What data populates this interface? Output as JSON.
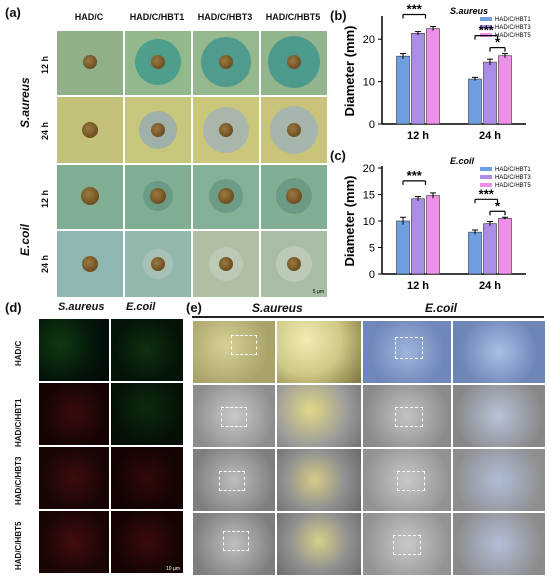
{
  "panel_a": {
    "label": "(a)",
    "columns": [
      "HAD/C",
      "HAD/C/HBT1",
      "HAD/C/HBT3",
      "HAD/C/HBT5"
    ],
    "groups": [
      "S.aureus",
      "E.coil"
    ],
    "times": [
      "12 h",
      "24 h"
    ],
    "scale_bar": "5 µm"
  },
  "panel_d": {
    "label": "(d)",
    "columns": [
      "S.aureus",
      "E.coil"
    ],
    "rows": [
      "HAD/C",
      "HAD/C/HBT1",
      "HAD/C/HBT3",
      "HAD/C/HBT5"
    ],
    "scale_bar": "10 µm"
  },
  "panel_e": {
    "label": "(e)",
    "columns": [
      "S.aureus",
      "E.coil"
    ]
  },
  "panel_b": {
    "label": "(b)"
  },
  "panel_c": {
    "label": "(c)"
  },
  "chart_data": [
    {
      "type": "bar",
      "title": "S.aureus",
      "ylabel": "Diameter (mm)",
      "categories": [
        "12 h",
        "24 h"
      ],
      "ylim": [
        0,
        25
      ],
      "yticks": [
        0,
        10,
        20
      ],
      "series": [
        {
          "name": "HAD/C/HBT1",
          "color": "#6f9fe0",
          "values": [
            16.0,
            10.6
          ],
          "errors": [
            0.6,
            0.4
          ]
        },
        {
          "name": "HAD/C/HBT3",
          "color": "#a98de6",
          "values": [
            21.4,
            14.6
          ],
          "errors": [
            0.4,
            0.7
          ]
        },
        {
          "name": "HAD/C/HBT5",
          "color": "#f08ee8",
          "values": [
            22.5,
            16.1
          ],
          "errors": [
            0.5,
            0.5
          ]
        }
      ],
      "significance": [
        {
          "group": "12 h",
          "text": "***"
        },
        {
          "group": "24 h",
          "text": "***"
        },
        {
          "group": "24 h",
          "text": "*"
        }
      ]
    },
    {
      "type": "bar",
      "title": "E.coil",
      "ylabel": "Diameter (mm)",
      "categories": [
        "12 h",
        "24 h"
      ],
      "ylim": [
        0,
        20
      ],
      "yticks": [
        0,
        5,
        10,
        15,
        20
      ],
      "series": [
        {
          "name": "HAD/C/HBT1",
          "color": "#6f9fe0",
          "values": [
            10.0,
            7.9
          ],
          "errors": [
            0.7,
            0.4
          ]
        },
        {
          "name": "HAD/C/HBT3",
          "color": "#a98de6",
          "values": [
            14.2,
            9.5
          ],
          "errors": [
            0.4,
            0.4
          ]
        },
        {
          "name": "HAD/C/HBT5",
          "color": "#f08ee8",
          "values": [
            14.8,
            10.5
          ],
          "errors": [
            0.5,
            0.2
          ]
        }
      ],
      "significance": [
        {
          "group": "12 h",
          "text": "***"
        },
        {
          "group": "24 h",
          "text": "***"
        },
        {
          "group": "24 h",
          "text": "*"
        }
      ]
    }
  ]
}
